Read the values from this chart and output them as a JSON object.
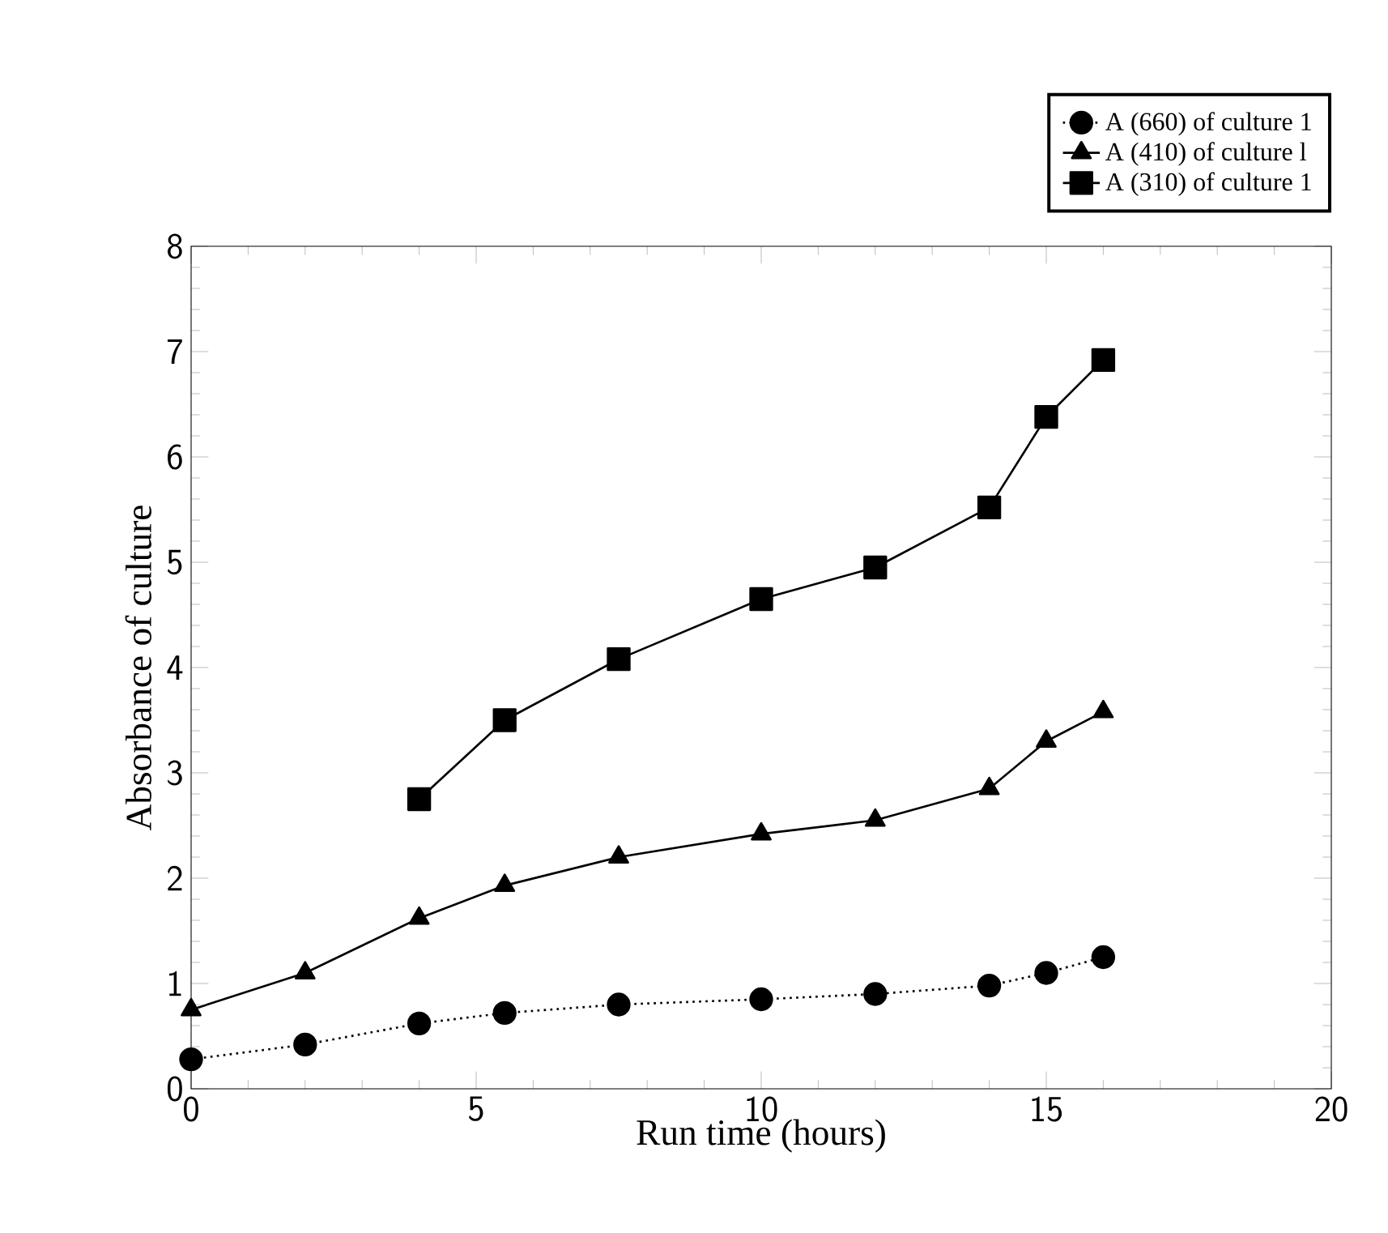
{
  "chart_data": {
    "type": "line",
    "xlabel": "Run time (hours)",
    "ylabel": "Absorbance of culture",
    "xlim": [
      0,
      20
    ],
    "ylim": [
      0,
      8
    ],
    "xticks": [
      0,
      5,
      10,
      15,
      20
    ],
    "yticks": [
      0,
      1,
      2,
      3,
      4,
      5,
      6,
      7,
      8
    ],
    "legend": "top right",
    "grid": false,
    "series": [
      {
        "name": "A (660) of culture 1",
        "color": "#000000",
        "marker": "circle",
        "line_style": "dotted",
        "x": [
          0,
          2,
          4,
          5.5,
          7.5,
          10,
          12,
          14,
          15,
          16
        ],
        "values": [
          0.28,
          0.42,
          0.62,
          0.72,
          0.8,
          0.85,
          0.9,
          0.98,
          1.1,
          1.25
        ]
      },
      {
        "name": "A (410) of culture l",
        "color": "#000000",
        "marker": "triangle",
        "line_style": "solid",
        "x": [
          0,
          2,
          4,
          5.5,
          7.5,
          10,
          12,
          14,
          15,
          16
        ],
        "values": [
          0.75,
          1.1,
          1.62,
          1.93,
          2.2,
          2.42,
          2.55,
          2.85,
          3.3,
          3.58
        ]
      },
      {
        "name": "A (310) of culture 1",
        "color": "#000000",
        "marker": "square",
        "line_style": "solid",
        "x": [
          4,
          5.5,
          7.5,
          10,
          12,
          14,
          15,
          16
        ],
        "values": [
          2.75,
          3.5,
          4.08,
          4.65,
          4.95,
          5.52,
          6.38,
          6.92
        ]
      }
    ]
  }
}
